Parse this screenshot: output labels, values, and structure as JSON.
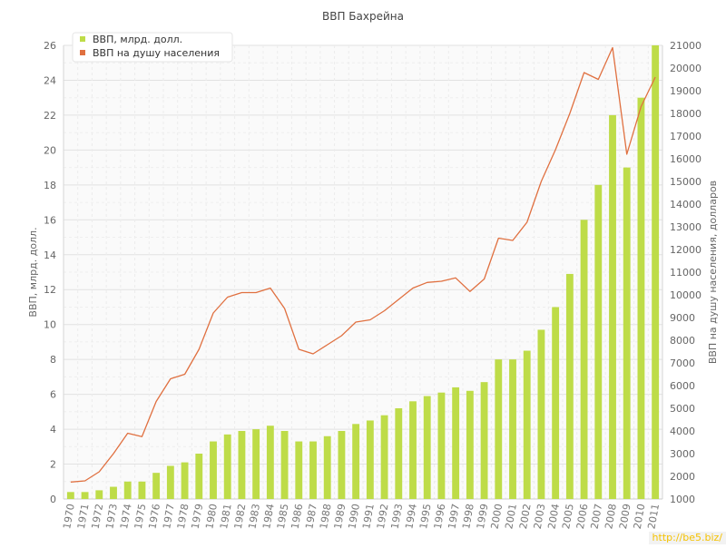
{
  "chart_data": {
    "type": "bar",
    "title": "ВВП Бахрейна",
    "ylabel": "ВВП, млрд. долл.",
    "y2label": "ВВП на душу населения, долларов",
    "ylim": [
      0,
      26
    ],
    "y2lim": [
      1000,
      21000
    ],
    "yticks": [
      0,
      2,
      4,
      6,
      8,
      10,
      12,
      14,
      16,
      18,
      20,
      22,
      24,
      26
    ],
    "y2ticks": [
      1000,
      2000,
      3000,
      4000,
      5000,
      6000,
      7000,
      8000,
      9000,
      10000,
      11000,
      12000,
      13000,
      14000,
      15000,
      16000,
      17000,
      18000,
      19000,
      20000,
      21000
    ],
    "grid": true,
    "legend_position": "top-left",
    "categories": [
      "1970",
      "1971",
      "1972",
      "1973",
      "1974",
      "1975",
      "1976",
      "1977",
      "1978",
      "1979",
      "1980",
      "1981",
      "1982",
      "1983",
      "1984",
      "1985",
      "1986",
      "1987",
      "1988",
      "1989",
      "1990",
      "1991",
      "1992",
      "1993",
      "1994",
      "1995",
      "1996",
      "1997",
      "1998",
      "1999",
      "2000",
      "2001",
      "2002",
      "2003",
      "2004",
      "2005",
      "2006",
      "2007",
      "2008",
      "2009",
      "2010",
      "2011"
    ],
    "series": [
      {
        "name": "ВВП, млрд. долл.",
        "type": "bar",
        "axis": "left",
        "color": "#bedc48",
        "values": [
          0.4,
          0.4,
          0.5,
          0.7,
          1.0,
          1.0,
          1.5,
          1.9,
          2.1,
          2.6,
          3.3,
          3.7,
          3.9,
          4.0,
          4.2,
          3.9,
          3.3,
          3.3,
          3.6,
          3.9,
          4.3,
          4.5,
          4.8,
          5.2,
          5.6,
          5.9,
          6.1,
          6.4,
          6.2,
          6.7,
          8.0,
          8.0,
          8.5,
          9.7,
          11.0,
          12.9,
          16.0,
          18.0,
          22.0,
          19.0,
          23.0,
          26.0
        ]
      },
      {
        "name": "ВВП на душу населения",
        "type": "line",
        "axis": "right",
        "color": "#e07040",
        "values": [
          1750,
          1800,
          2200,
          3000,
          3900,
          3750,
          5300,
          6300,
          6500,
          7600,
          9200,
          9900,
          10100,
          10100,
          10300,
          9400,
          7600,
          7400,
          7800,
          8200,
          8800,
          8900,
          9300,
          9800,
          10300,
          10550,
          10600,
          10750,
          10150,
          10700,
          12500,
          12400,
          13200,
          15000,
          16400,
          18000,
          19800,
          19500,
          20900,
          16200,
          18300,
          19600
        ]
      }
    ]
  },
  "watermark": "http://be5.biz/"
}
